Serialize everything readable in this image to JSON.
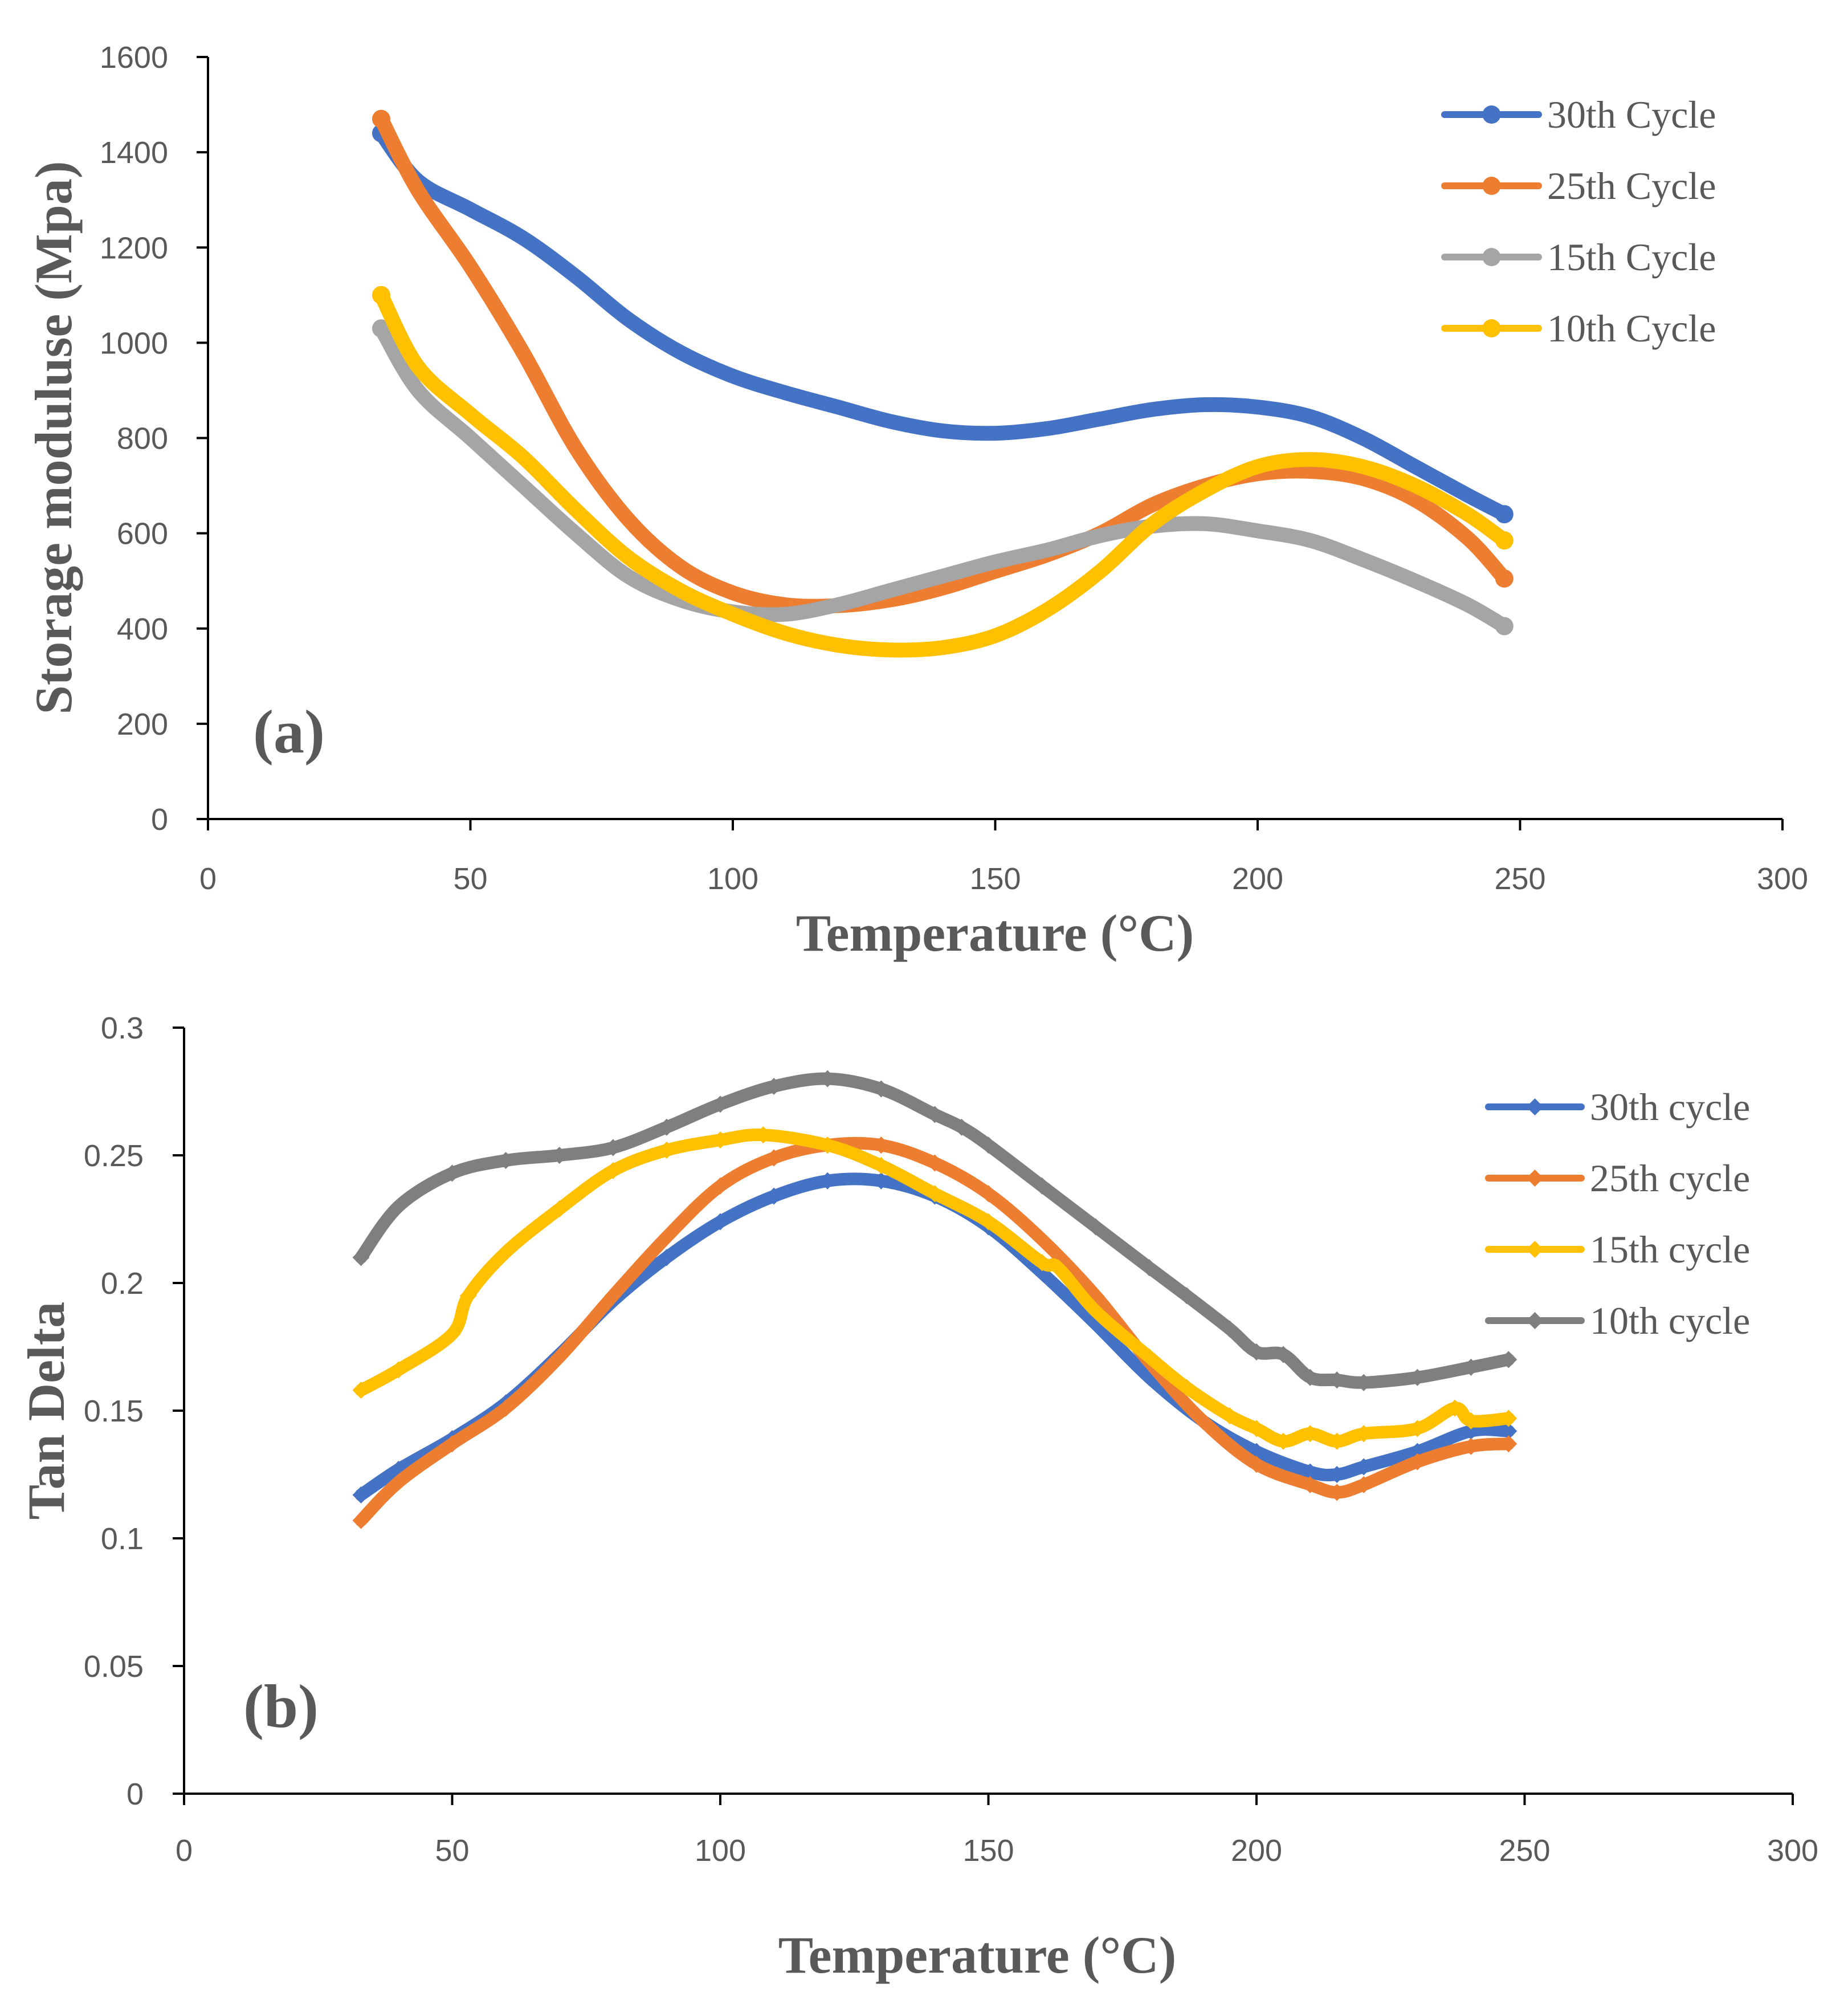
{
  "chart_data": [
    {
      "type": "line",
      "panel_label": "(a)",
      "xlabel": "Temperature (°C)",
      "ylabel": "Storage moduluse (Mpa)",
      "xlim": [
        0,
        300
      ],
      "ylim": [
        0,
        1600
      ],
      "xticks": [
        "0",
        "50",
        "100",
        "150",
        "200",
        "250",
        "300"
      ],
      "yticks": [
        "0",
        "200",
        "400",
        "600",
        "800",
        "1000",
        "1200",
        "1400",
        "1600"
      ],
      "legend_position": "top-right",
      "series": [
        {
          "name": "30th Cycle",
          "color": "#4472C4",
          "x": [
            33,
            40,
            50,
            60,
            70,
            80,
            90,
            100,
            110,
            120,
            130,
            140,
            150,
            160,
            170,
            180,
            190,
            200,
            210,
            220,
            230,
            240,
            247
          ],
          "y": [
            1440,
            1340,
            1280,
            1220,
            1140,
            1050,
            980,
            930,
            895,
            865,
            835,
            815,
            810,
            820,
            840,
            860,
            870,
            865,
            845,
            800,
            740,
            680,
            640
          ]
        },
        {
          "name": "25th Cycle",
          "color": "#ED7D31",
          "x": [
            33,
            40,
            50,
            60,
            70,
            80,
            90,
            100,
            110,
            120,
            130,
            140,
            150,
            160,
            170,
            180,
            190,
            200,
            210,
            220,
            230,
            240,
            247
          ],
          "y": [
            1470,
            1320,
            1160,
            980,
            780,
            630,
            530,
            475,
            450,
            448,
            460,
            485,
            520,
            555,
            600,
            660,
            700,
            725,
            730,
            715,
            670,
            590,
            505
          ]
        },
        {
          "name": "15th Cycle",
          "color": "#A5A5A5",
          "x": [
            33,
            40,
            50,
            60,
            70,
            80,
            90,
            100,
            110,
            120,
            130,
            140,
            150,
            160,
            170,
            180,
            190,
            200,
            210,
            220,
            230,
            240,
            247
          ],
          "y": [
            1030,
            900,
            800,
            700,
            600,
            510,
            460,
            435,
            430,
            450,
            480,
            510,
            540,
            565,
            595,
            615,
            620,
            605,
            585,
            545,
            500,
            450,
            405
          ]
        },
        {
          "name": "10th Cycle",
          "color": "#FFC000",
          "x": [
            33,
            40,
            50,
            60,
            70,
            80,
            90,
            100,
            110,
            120,
            130,
            140,
            150,
            160,
            170,
            180,
            190,
            200,
            210,
            220,
            230,
            240,
            247
          ],
          "y": [
            1100,
            950,
            850,
            760,
            650,
            550,
            480,
            430,
            390,
            365,
            355,
            360,
            385,
            440,
            520,
            620,
            690,
            740,
            755,
            740,
            700,
            640,
            585
          ]
        }
      ]
    },
    {
      "type": "line",
      "panel_label": "(b)",
      "xlabel": "Temperature (°C)",
      "ylabel": "Tan Delta",
      "xlim": [
        0,
        300
      ],
      "ylim": [
        0,
        0.3
      ],
      "xticks": [
        "0",
        "50",
        "100",
        "150",
        "200",
        "250",
        "300"
      ],
      "yticks": [
        "0",
        "0.05",
        "0.1",
        "0.15",
        "0.2",
        "0.25",
        "0.3"
      ],
      "legend_position": "right",
      "series": [
        {
          "name": "30th cycle",
          "color": "#4472C4",
          "x": [
            33,
            40,
            50,
            60,
            70,
            80,
            90,
            100,
            110,
            120,
            130,
            140,
            150,
            160,
            170,
            180,
            190,
            200,
            210,
            215,
            220,
            230,
            240,
            247
          ],
          "y": [
            0.117,
            0.127,
            0.139,
            0.153,
            0.172,
            0.193,
            0.21,
            0.224,
            0.234,
            0.24,
            0.24,
            0.234,
            0.222,
            0.204,
            0.184,
            0.163,
            0.146,
            0.134,
            0.126,
            0.125,
            0.128,
            0.134,
            0.142,
            0.142
          ]
        },
        {
          "name": "25th cycle",
          "color": "#ED7D31",
          "x": [
            33,
            40,
            50,
            60,
            70,
            80,
            90,
            100,
            110,
            120,
            130,
            140,
            150,
            160,
            170,
            180,
            190,
            200,
            210,
            215,
            220,
            230,
            240,
            247
          ],
          "y": [
            0.107,
            0.122,
            0.137,
            0.151,
            0.171,
            0.195,
            0.218,
            0.238,
            0.249,
            0.254,
            0.254,
            0.247,
            0.235,
            0.217,
            0.195,
            0.169,
            0.146,
            0.129,
            0.121,
            0.118,
            0.121,
            0.13,
            0.136,
            0.137
          ]
        },
        {
          "name": "15th cycle",
          "color": "#FFC000",
          "x": [
            33,
            40,
            50,
            53,
            60,
            70,
            80,
            90,
            100,
            108,
            120,
            130,
            140,
            150,
            160,
            163,
            170,
            180,
            187,
            195,
            200,
            205,
            210,
            215,
            220,
            230,
            237,
            240,
            247
          ],
          "y": [
            0.158,
            0.166,
            0.18,
            0.195,
            0.212,
            0.229,
            0.244,
            0.252,
            0.256,
            0.258,
            0.254,
            0.246,
            0.235,
            0.224,
            0.208,
            0.206,
            0.189,
            0.171,
            0.159,
            0.148,
            0.143,
            0.138,
            0.141,
            0.138,
            0.141,
            0.143,
            0.151,
            0.146,
            0.147
          ]
        },
        {
          "name": "10th cycle",
          "color": "#7F7F7F",
          "x": [
            33,
            40,
            50,
            60,
            70,
            80,
            90,
            100,
            110,
            120,
            130,
            140,
            145,
            150,
            160,
            170,
            180,
            187,
            195,
            200,
            205,
            210,
            215,
            220,
            230,
            240,
            247
          ],
          "y": [
            0.21,
            0.23,
            0.243,
            0.248,
            0.25,
            0.253,
            0.261,
            0.27,
            0.277,
            0.28,
            0.276,
            0.266,
            0.261,
            0.254,
            0.238,
            0.222,
            0.206,
            0.195,
            0.182,
            0.173,
            0.172,
            0.163,
            0.162,
            0.161,
            0.163,
            0.167,
            0.17
          ]
        }
      ]
    }
  ]
}
